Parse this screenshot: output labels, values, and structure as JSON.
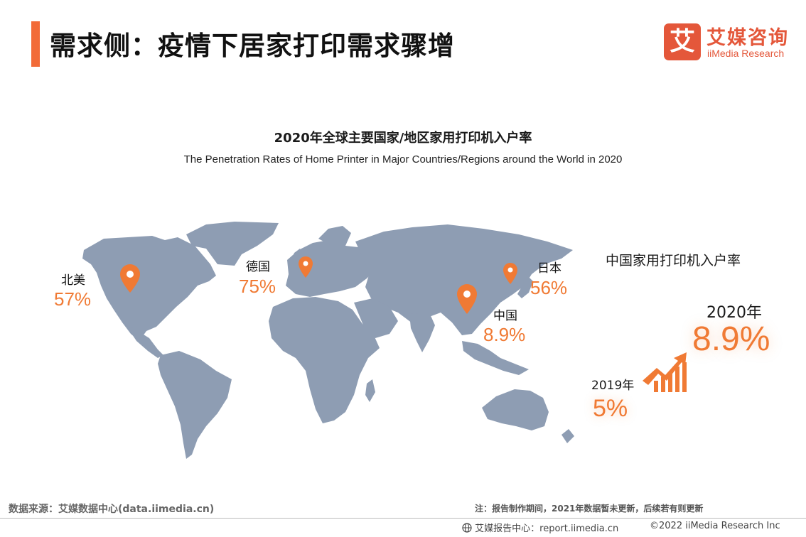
{
  "header": {
    "title": "需求侧：疫情下居家打印需求骤增"
  },
  "logo": {
    "mark": "艾",
    "name_cn": "艾媒咨询",
    "name_en": "iiMedia Research"
  },
  "chart": {
    "title_cn": "2020年全球主要国家/地区家用打印机入户率",
    "title_en": "The Penetration Rates of Home Printer in Major Countries/Regions around the World in 2020"
  },
  "chart_data": {
    "type": "table",
    "categories": [
      "北美",
      "德国",
      "日本",
      "中国"
    ],
    "values": [
      "57%",
      "75%",
      "56%",
      "8.9%"
    ],
    "title": "2020年全球主要国家/地区家用打印机入户率"
  },
  "regions": [
    {
      "name": "北美",
      "value": "57%"
    },
    {
      "name": "德国",
      "value": "75%"
    },
    {
      "name": "日本",
      "value": "56%"
    },
    {
      "name": "中国",
      "value": "8.9%"
    }
  ],
  "china_panel": {
    "title": "中国家用打印机入户率",
    "year_2020": "2020年",
    "value_2020": "8.9%",
    "year_2019": "2019年",
    "value_2019": "5%"
  },
  "footer": {
    "source": "数据来源：艾媒数据中心(data.iimedia.cn)",
    "note": "注：报告制作期间，2021年数据暂未更新，后续若有则更新",
    "report_center": "艾媒报告中心：report.iimedia.cn",
    "copyright": "©2022  iiMedia Research  Inc"
  },
  "colors": {
    "accent": "#f07a34",
    "title_bar": "#f26b38",
    "map": "#8e9db3",
    "logo": "#e4573a"
  },
  "icons": [
    "map-pin-icon",
    "growth-chart-icon",
    "globe-icon"
  ]
}
